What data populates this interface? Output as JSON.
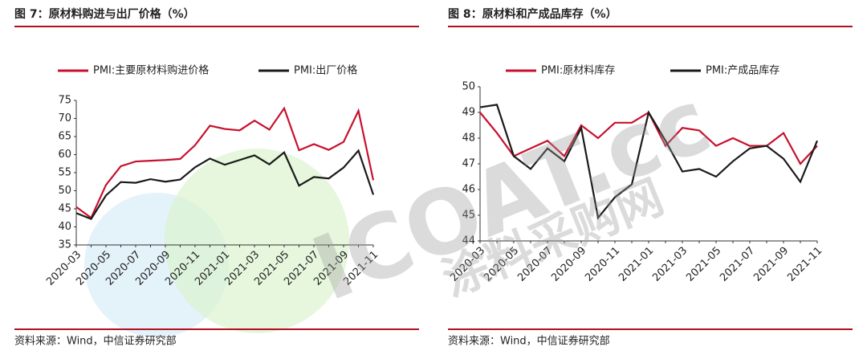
{
  "chart_data": [
    {
      "type": "line",
      "title": "图 7：原材料购进与出厂价格（%）",
      "source": "资料来源：Wind，中信证券研究部",
      "categories": [
        "2020-03",
        null,
        "2020-05",
        null,
        "2020-07",
        null,
        "2020-09",
        null,
        "2020-11",
        null,
        "2021-01",
        null,
        "2021-03",
        null,
        "2021-05",
        null,
        "2021-07",
        null,
        "2021-09",
        null,
        "2021-11"
      ],
      "series": [
        {
          "name": "PMI:主要原材料购进价格",
          "color": "#c8102e",
          "values": [
            45.5,
            42.5,
            51.6,
            56.8,
            58.1,
            58.3,
            58.5,
            58.8,
            62.6,
            68.0,
            67.1,
            66.7,
            69.4,
            66.9,
            72.8,
            61.2,
            62.9,
            61.3,
            63.5,
            72.1,
            52.9
          ]
        },
        {
          "name": "PMI:出厂价格",
          "color": "#1a1a1a",
          "values": [
            43.8,
            42.2,
            48.7,
            52.4,
            52.2,
            53.2,
            52.5,
            53.1,
            56.5,
            58.9,
            57.2,
            58.5,
            59.8,
            57.3,
            60.6,
            51.4,
            53.8,
            53.4,
            56.4,
            61.1,
            48.9
          ]
        }
      ],
      "ylim": [
        35,
        75
      ],
      "yticks": [
        35,
        40,
        45,
        50,
        55,
        60,
        65,
        70,
        75
      ]
    },
    {
      "type": "line",
      "title": "图 8：原材料和产成品库存（%）",
      "source": "资料来源：Wind，中信证券研究部",
      "categories": [
        "2020-03",
        null,
        "2020-05",
        null,
        "2020-07",
        null,
        "2020-09",
        null,
        "2020-11",
        null,
        "2021-01",
        null,
        "2021-03",
        null,
        "2021-05",
        null,
        "2021-07",
        null,
        "2021-09",
        null,
        "2021-11"
      ],
      "series": [
        {
          "name": "PMI:原材料库存",
          "color": "#c8102e",
          "values": [
            49.0,
            48.2,
            47.3,
            47.6,
            47.9,
            47.3,
            48.5,
            48.0,
            48.6,
            48.6,
            49.0,
            47.7,
            48.4,
            48.3,
            47.7,
            48.0,
            47.7,
            47.7,
            48.2,
            47.0,
            47.7
          ]
        },
        {
          "name": "PMI:产成品库存",
          "color": "#1a1a1a",
          "values": [
            49.2,
            49.3,
            47.3,
            46.8,
            47.6,
            47.1,
            48.4,
            44.9,
            45.7,
            46.2,
            49.0,
            47.9,
            46.7,
            46.8,
            46.5,
            47.1,
            47.6,
            47.7,
            47.2,
            46.3,
            47.9
          ]
        }
      ],
      "ylim": [
        44,
        50
      ],
      "yticks": [
        44,
        45,
        46,
        47,
        48,
        49,
        50
      ]
    }
  ],
  "watermark": {
    "brand": "ICOAT.cc",
    "site": "涂料采购网"
  }
}
